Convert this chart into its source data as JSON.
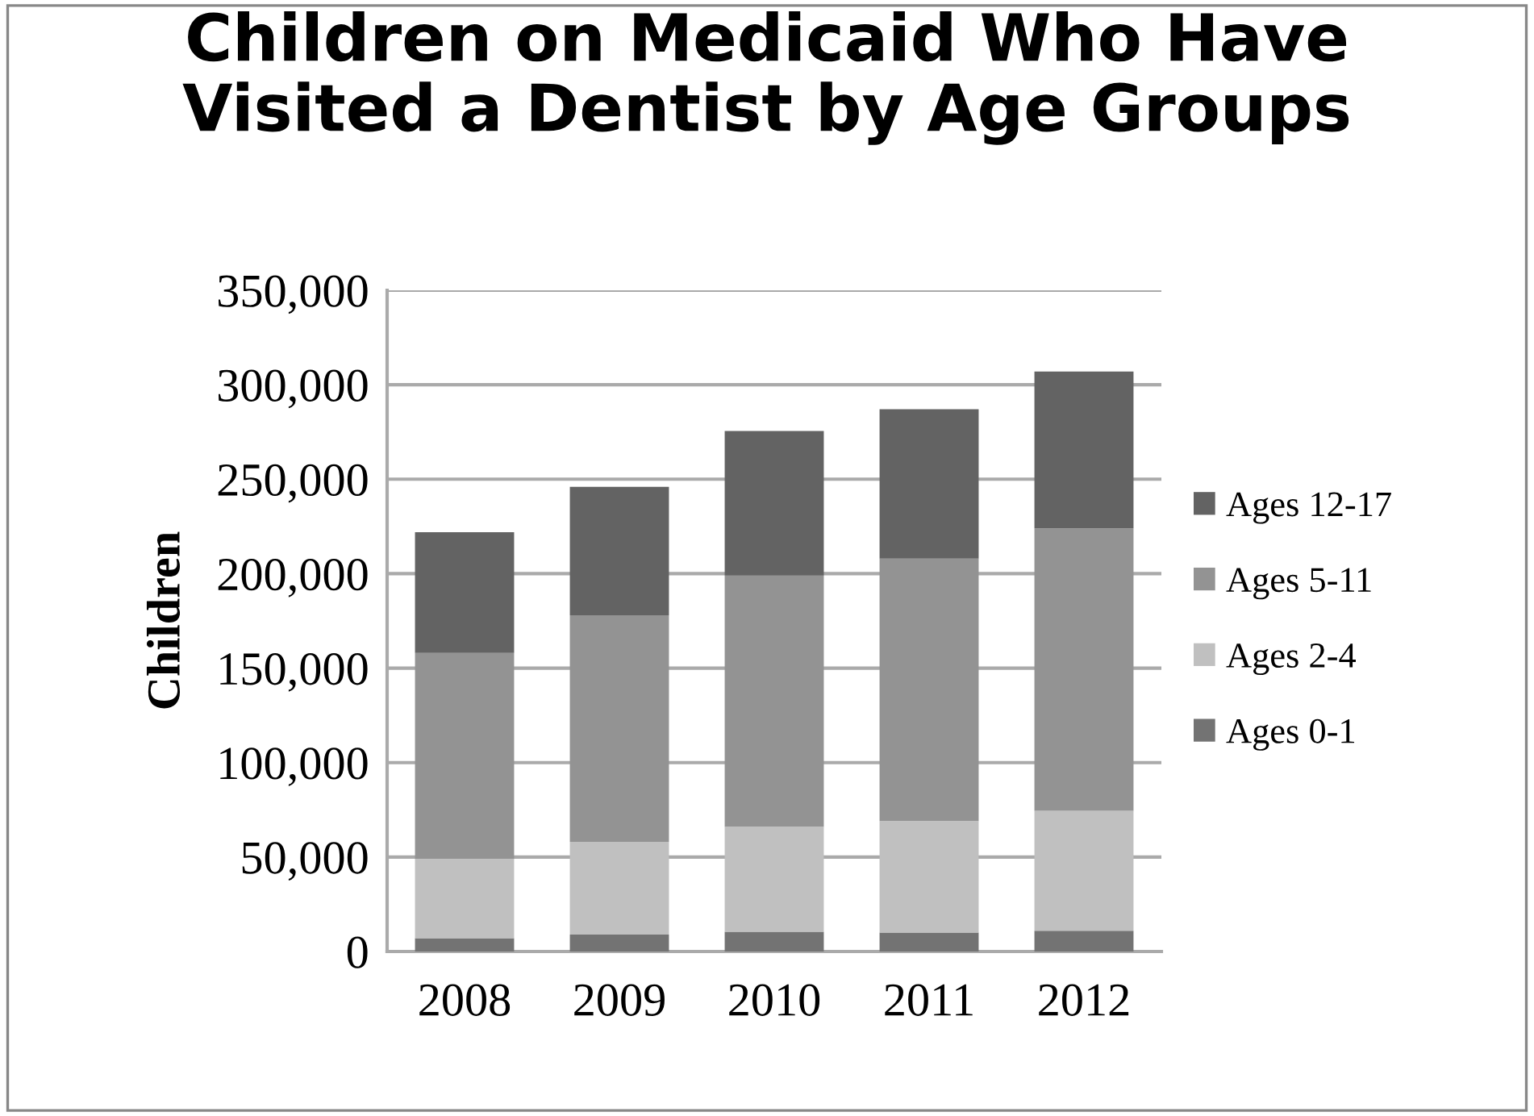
{
  "chart_data": {
    "type": "bar",
    "title": "Children on Medicaid Who Have\nVisited a Dentist by Age Groups",
    "ylabel": "Children",
    "categories": [
      "2008",
      "2009",
      "2010",
      "2011",
      "2012"
    ],
    "stacked": true,
    "series": [
      {
        "name": "Ages 0-1",
        "color": "#737373",
        "values": [
          7000,
          9000,
          10500,
          10000,
          11000
        ]
      },
      {
        "name": "Ages 2-4",
        "color": "#c0c0c0",
        "values": [
          42000,
          49000,
          55500,
          59000,
          63500
        ]
      },
      {
        "name": "Ages 5-11",
        "color": "#939393",
        "values": [
          109000,
          120000,
          133000,
          139000,
          149500
        ]
      },
      {
        "name": "Ages 12-17",
        "color": "#636363",
        "values": [
          64000,
          68000,
          76500,
          79000,
          83000
        ]
      }
    ],
    "ylim": [
      0,
      350000
    ],
    "yticks": [
      {
        "value": 0,
        "label": "0"
      },
      {
        "value": 50000,
        "label": "50,000"
      },
      {
        "value": 100000,
        "label": "100,000"
      },
      {
        "value": 150000,
        "label": "150,000"
      },
      {
        "value": 200000,
        "label": "200,000"
      },
      {
        "value": 250000,
        "label": "250,000"
      },
      {
        "value": 300000,
        "label": "300,000"
      },
      {
        "value": 350000,
        "label": "350,000"
      }
    ],
    "grid": "y",
    "legend": "right"
  }
}
